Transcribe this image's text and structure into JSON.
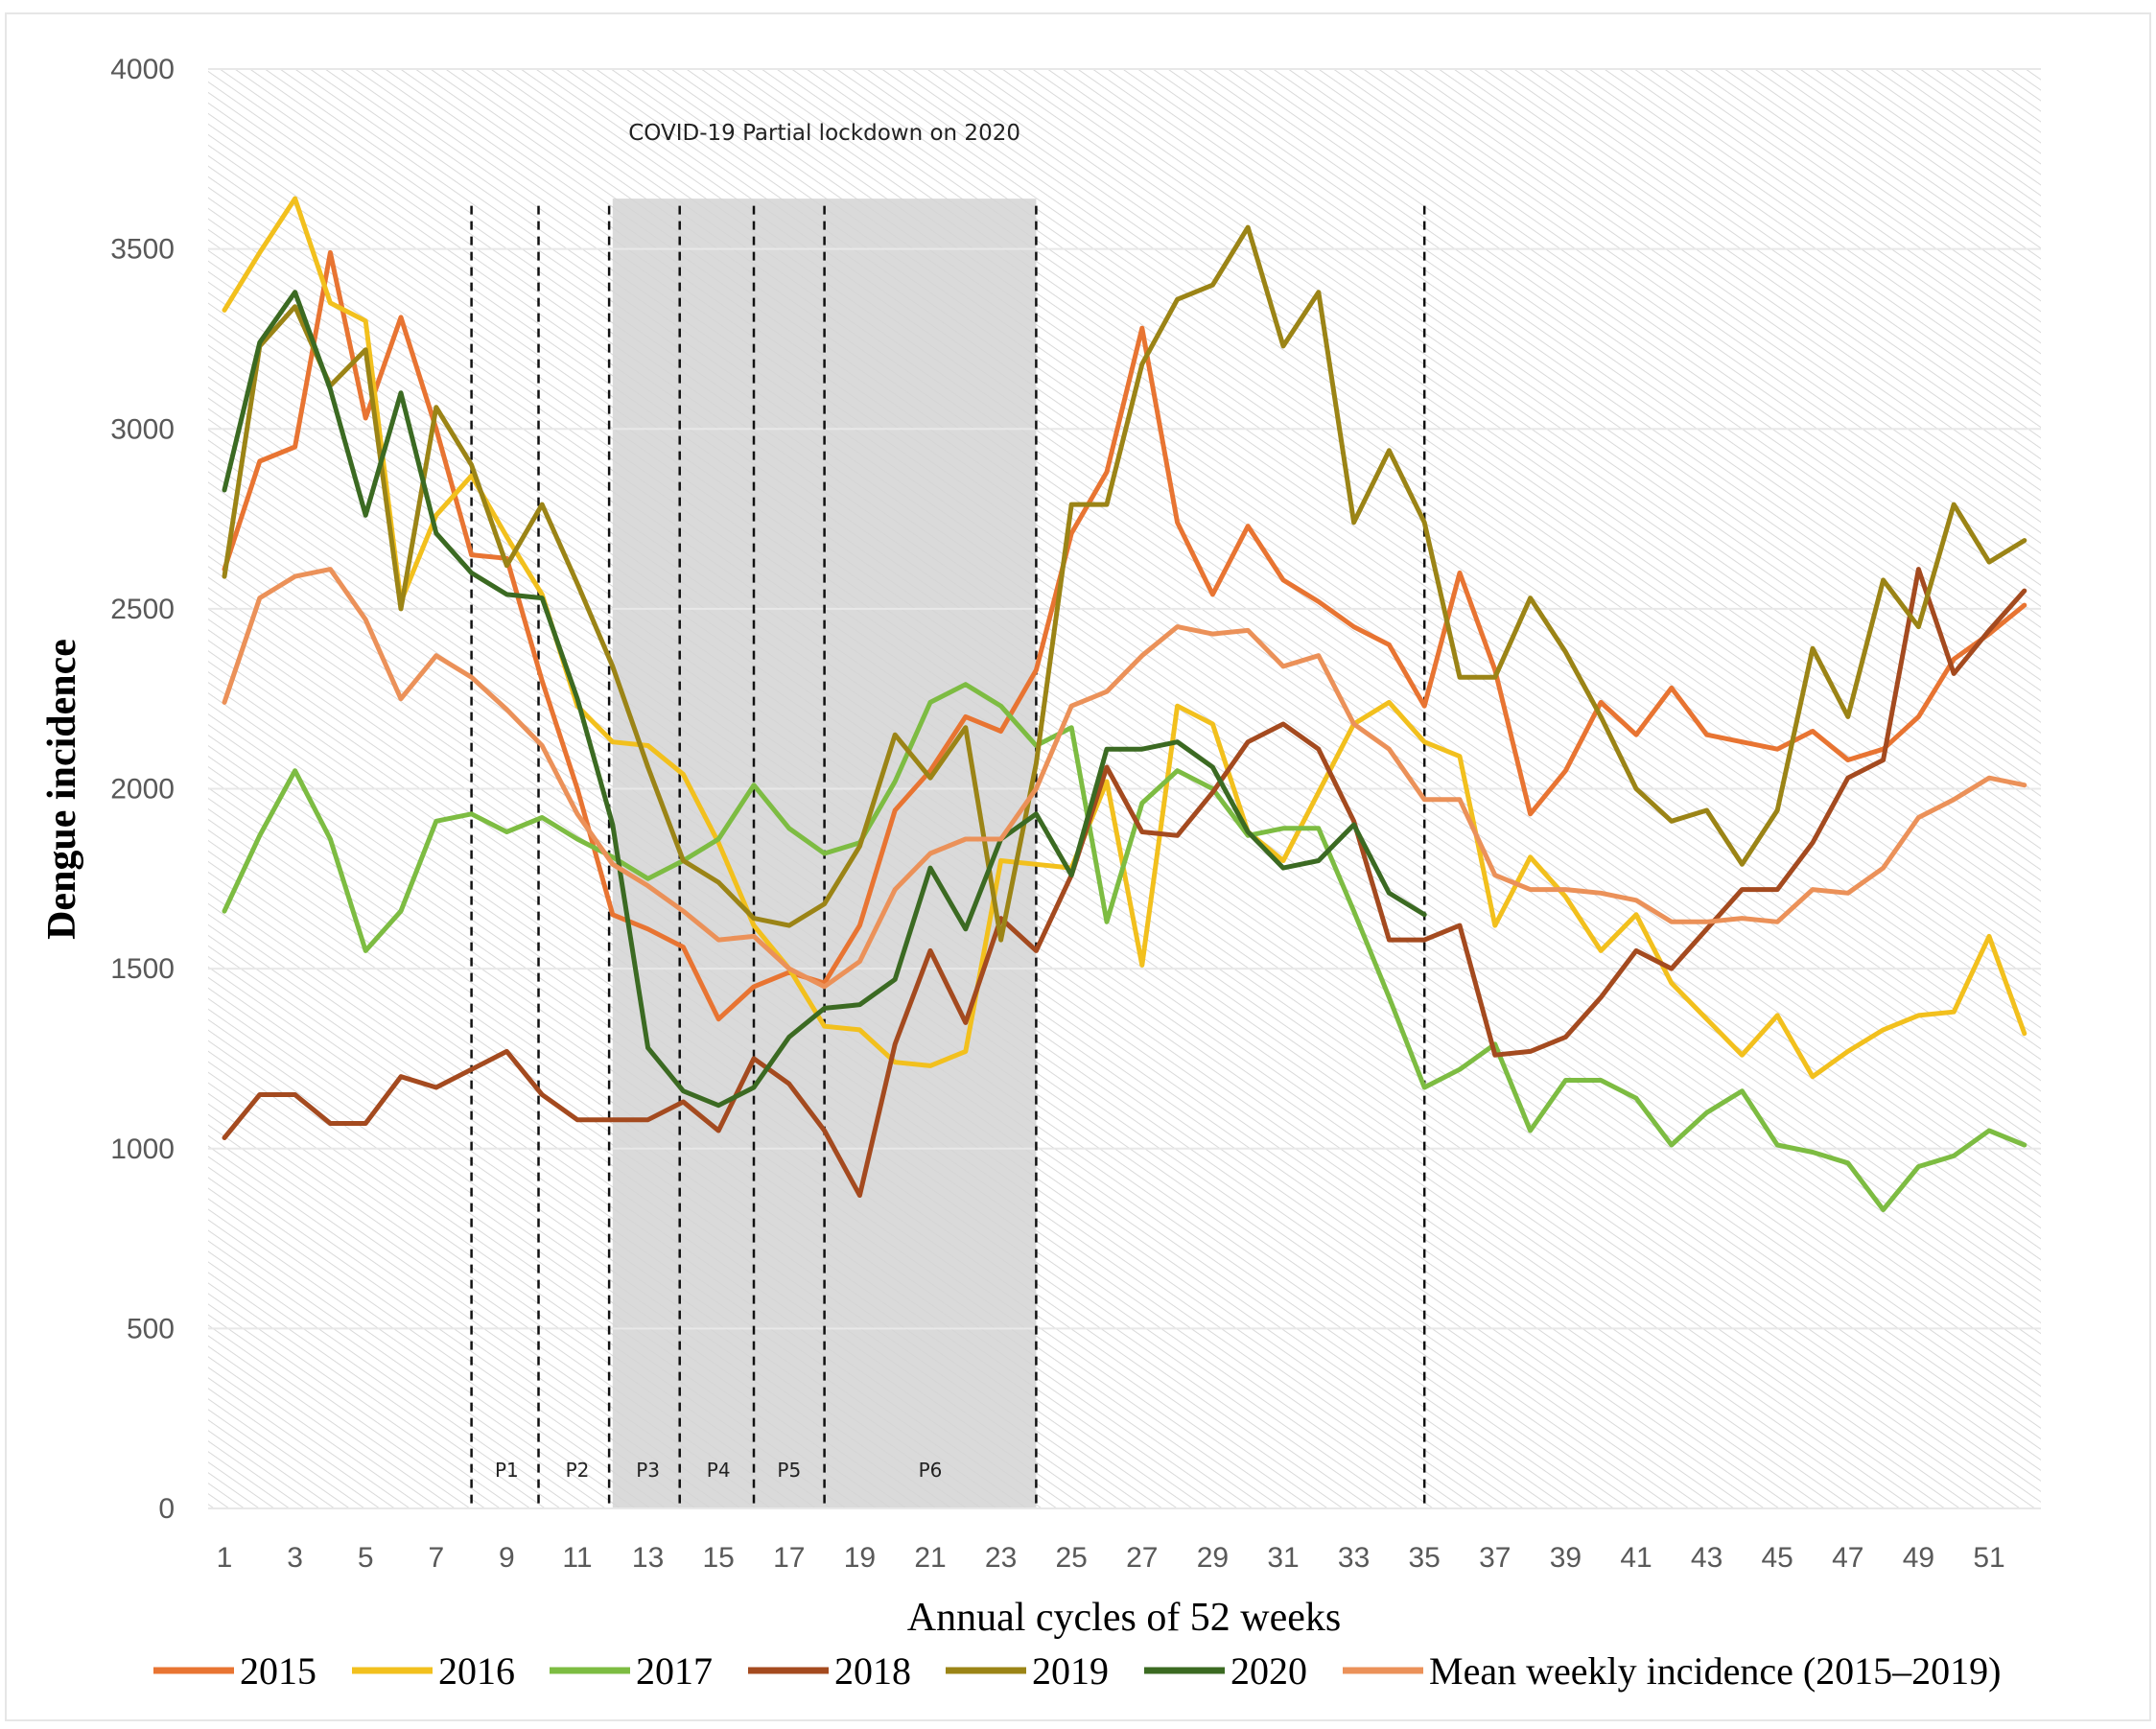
{
  "chart_data": {
    "type": "line",
    "title": "",
    "xlabel": "Annual cycles of 52 weeks",
    "ylabel": "Dengue incidence",
    "xlim": [
      1,
      52
    ],
    "ylim": [
      0,
      4000
    ],
    "x_ticks": [
      1,
      3,
      5,
      7,
      9,
      11,
      13,
      15,
      17,
      19,
      21,
      23,
      25,
      27,
      29,
      31,
      33,
      35,
      37,
      39,
      41,
      43,
      45,
      47,
      49,
      51
    ],
    "y_ticks": [
      0,
      500,
      1000,
      1500,
      2000,
      2500,
      3000,
      3500,
      4000
    ],
    "grid": true,
    "legend_position": "bottom",
    "annotation": "COVID-19 Partial lockdown on 2020",
    "lockdown_shading_weeks": [
      12.0,
      24.0
    ],
    "period_boundaries_weeks": [
      8.0,
      9.9,
      11.9,
      13.9,
      16.0,
      18.0,
      24.0,
      35.0
    ],
    "periods": [
      {
        "label": "P1",
        "week": 9.0
      },
      {
        "label": "P2",
        "week": 11.0
      },
      {
        "label": "P3",
        "week": 13.0
      },
      {
        "label": "P4",
        "week": 15.0
      },
      {
        "label": "P5",
        "week": 17.0
      },
      {
        "label": "P6",
        "week": 21.0
      }
    ],
    "series": [
      {
        "name": "2015",
        "color": "#E87432",
        "y": [
          2610,
          2910,
          2950,
          3490,
          3030,
          3310,
          3000,
          2650,
          2640,
          2300,
          2000,
          1650,
          1610,
          1560,
          1360,
          1450,
          1490,
          1460,
          1620,
          1940,
          2050,
          2200,
          2160,
          2330,
          2710,
          2880,
          3280,
          2740,
          2540,
          2730,
          2580,
          2520,
          2450,
          2400,
          2230,
          2600,
          2330,
          1930,
          2050,
          2240,
          2150,
          2280,
          2150,
          2130,
          2110,
          2160,
          2080,
          2110,
          2200,
          2360,
          2430,
          2510
        ]
      },
      {
        "name": "2016",
        "color": "#F2C01D",
        "y": [
          3330,
          3490,
          3640,
          3350,
          3300,
          2520,
          2760,
          2870,
          2700,
          2540,
          2230,
          2130,
          2120,
          2040,
          1850,
          1620,
          1500,
          1340,
          1330,
          1240,
          1230,
          1270,
          1800,
          1790,
          1780,
          2020,
          1510,
          2230,
          2180,
          1880,
          1800,
          1990,
          2180,
          2240,
          2130,
          2090,
          1620,
          1810,
          1700,
          1550,
          1650,
          1460,
          1360,
          1260,
          1370,
          1200,
          1270,
          1330,
          1370,
          1380,
          1590,
          1320
        ]
      },
      {
        "name": "2017",
        "color": "#7DBC42",
        "y": [
          1660,
          1870,
          2050,
          1860,
          1550,
          1660,
          1910,
          1930,
          1880,
          1920,
          1860,
          1810,
          1750,
          1800,
          1860,
          2010,
          1890,
          1820,
          1850,
          2020,
          2240,
          2290,
          2230,
          2120,
          2170,
          1630,
          1960,
          2050,
          2000,
          1870,
          1890,
          1890,
          1660,
          1420,
          1170,
          1220,
          1290,
          1050,
          1190,
          1190,
          1140,
          1010,
          1100,
          1160,
          1010,
          990,
          960,
          830,
          950,
          980,
          1050,
          1010
        ]
      },
      {
        "name": "2018",
        "color": "#A44A1F",
        "y": [
          1030,
          1150,
          1150,
          1070,
          1070,
          1200,
          1170,
          1220,
          1270,
          1150,
          1080,
          1080,
          1080,
          1130,
          1050,
          1250,
          1180,
          1050,
          870,
          1290,
          1550,
          1350,
          1640,
          1550,
          1760,
          2060,
          1880,
          1870,
          1990,
          2130,
          2180,
          2110,
          1910,
          1580,
          1580,
          1620,
          1260,
          1270,
          1310,
          1420,
          1550,
          1500,
          1610,
          1720,
          1720,
          1850,
          2030,
          2080,
          2610,
          2320,
          2440,
          2550
        ]
      },
      {
        "name": "2019",
        "color": "#9B8416",
        "y": [
          2590,
          3230,
          3340,
          3120,
          3220,
          2500,
          3060,
          2900,
          2620,
          2790,
          2570,
          2340,
          2060,
          1800,
          1740,
          1640,
          1620,
          1680,
          1840,
          2150,
          2030,
          2170,
          1580,
          2070,
          2790,
          2790,
          3180,
          3360,
          3400,
          3560,
          3230,
          3380,
          2740,
          2940,
          2740,
          2310,
          2310,
          2530,
          2380,
          2200,
          2000,
          1910,
          1940,
          1790,
          1940,
          2390,
          2200,
          2580,
          2450,
          2790,
          2630,
          2690
        ]
      },
      {
        "name": "2020",
        "color": "#3B6A22",
        "y": [
          2830,
          3240,
          3380,
          3110,
          2760,
          3100,
          2710,
          2600,
          2540,
          2530,
          2250,
          1900,
          1280,
          1160,
          1120,
          1170,
          1310,
          1390,
          1400,
          1470,
          1780,
          1610,
          1860,
          1930,
          1760,
          2110,
          2110,
          2130,
          2060,
          1880,
          1780,
          1800,
          1900,
          1710,
          1650
        ]
      },
      {
        "name": "Mean weekly incidence (2015–2019)",
        "color": "#EB9159",
        "y": [
          2240,
          2530,
          2590,
          2610,
          2470,
          2250,
          2370,
          2310,
          2220,
          2120,
          1930,
          1790,
          1730,
          1660,
          1580,
          1590,
          1500,
          1450,
          1520,
          1720,
          1820,
          1860,
          1860,
          2000,
          2230,
          2270,
          2370,
          2450,
          2430,
          2440,
          2340,
          2370,
          2180,
          2110,
          1970,
          1970,
          1760,
          1720,
          1720,
          1710,
          1690,
          1630,
          1630,
          1640,
          1630,
          1720,
          1710,
          1780,
          1920,
          1970,
          2030,
          2010
        ]
      }
    ]
  }
}
